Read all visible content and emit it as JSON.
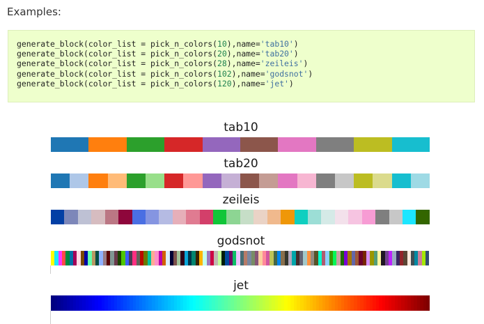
{
  "heading": "Examples:",
  "code": {
    "lines": [
      {
        "pre": "generate_block(color_list = pick_n_colors(",
        "num": "10",
        "mid": "),name=",
        "str": "'tab10'",
        "post": ")"
      },
      {
        "pre": "generate_block(color_list = pick_n_colors(",
        "num": "20",
        "mid": "),name=",
        "str": "'tab20'",
        "post": ")"
      },
      {
        "pre": "generate_block(color_list = pick_n_colors(",
        "num": "28",
        "mid": "),name=",
        "str": "'zeileis'",
        "post": ")"
      },
      {
        "pre": "generate_block(color_list = pick_n_colors(",
        "num": "102",
        "mid": "),name=",
        "str": "'godsnot'",
        "post": ")"
      },
      {
        "pre": "generate_block(color_list = pick_n_colors(",
        "num": "120",
        "mid": "),name=",
        "str": "'jet'",
        "post": ")"
      }
    ]
  },
  "palettes": [
    {
      "name": "tab10",
      "count": 10,
      "colors": [
        "#1f77b4",
        "#ff7f0e",
        "#2ca02c",
        "#d62728",
        "#9467bd",
        "#8c564b",
        "#e377c2",
        "#7f7f7f",
        "#bcbd22",
        "#17becf"
      ]
    },
    {
      "name": "tab20",
      "count": 20,
      "colors": [
        "#1f77b4",
        "#aec7e8",
        "#ff7f0e",
        "#ffbb78",
        "#2ca02c",
        "#98df8a",
        "#d62728",
        "#ff9896",
        "#9467bd",
        "#c5b0d5",
        "#8c564b",
        "#c49c94",
        "#e377c2",
        "#f7b6d2",
        "#7f7f7f",
        "#c7c7c7",
        "#bcbd22",
        "#dbdb8d",
        "#17becf",
        "#9edae5"
      ]
    },
    {
      "name": "zeileis",
      "count": 28,
      "colors": [
        "#023fa5",
        "#7d87b9",
        "#bec1d4",
        "#d6bcc0",
        "#bb7784",
        "#8e063b",
        "#4a6fe3",
        "#8595e1",
        "#b5bbe3",
        "#e6afb9",
        "#e07b91",
        "#d33f6a",
        "#11c638",
        "#8dd593",
        "#c6dec7",
        "#ead3c6",
        "#f0b98d",
        "#ef9708",
        "#0fcfc0",
        "#9cded6",
        "#d5eae7",
        "#f3e1eb",
        "#f6c4e1",
        "#f79cd4",
        "#7f7f7f",
        "#c7c7c7",
        "#1ce6ff",
        "#336600"
      ]
    },
    {
      "name": "godsnot",
      "count": 102,
      "colors": [
        "#FFFF00",
        "#1CE6FF",
        "#FF34FF",
        "#FF4A46",
        "#008941",
        "#006FA6",
        "#A30059",
        "#FFDBE5",
        "#7A4900",
        "#0000A6",
        "#63FFAC",
        "#B79762",
        "#004D43",
        "#8FB0FF",
        "#997D87",
        "#5A0007",
        "#809693",
        "#6A3A4C",
        "#1B4400",
        "#4FC601",
        "#3B5DFF",
        "#4A3B53",
        "#FF2F80",
        "#61615A",
        "#BA0900",
        "#6B7900",
        "#00C2A0",
        "#FFAA92",
        "#FF90C9",
        "#B903AA",
        "#D16100",
        "#DDEFFF",
        "#000035",
        "#7B4F4B",
        "#A1C299",
        "#300018",
        "#0AA6D8",
        "#013349",
        "#00846F",
        "#372101",
        "#FFB500",
        "#C2FFED",
        "#A079BF",
        "#CC0744",
        "#C0B9B2",
        "#C2FF99",
        "#001E09",
        "#00489C",
        "#6F0062",
        "#0CBD66",
        "#EEC3FF",
        "#456D75",
        "#B77B68",
        "#7A87A1",
        "#788D66",
        "#885578",
        "#FAD09F",
        "#FF8A9A",
        "#D157A0",
        "#BEC459",
        "#456648",
        "#0086ED",
        "#886F4C",
        "#34362D",
        "#B4A8BD",
        "#00A6AA",
        "#452C2C",
        "#636375",
        "#A3C8C9",
        "#FF913F",
        "#938A81",
        "#575329",
        "#00FECF",
        "#B05B6F",
        "#8CD0FF",
        "#3B9700",
        "#04F757",
        "#C8A1A1",
        "#1E6E00",
        "#7900D7",
        "#A77500",
        "#6367A9",
        "#A05837",
        "#6B002C",
        "#772600",
        "#D790FF",
        "#9B9700",
        "#549E79",
        "#FFF69F",
        "#201625",
        "#72418F",
        "#BC23FF",
        "#99ADC0",
        "#3A2465",
        "#922329",
        "#5B4534",
        "#FDE8DC",
        "#404E55",
        "#0089A3",
        "#CB7E98",
        "#A4E804",
        "#324E72"
      ]
    },
    {
      "name": "jet",
      "count": 120,
      "colors": []
    }
  ]
}
